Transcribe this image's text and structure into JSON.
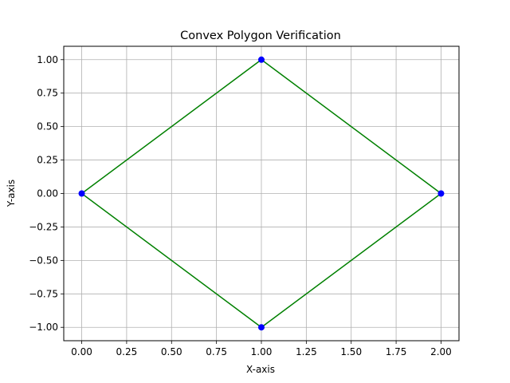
{
  "chart_data": {
    "type": "scatter",
    "title": "Convex Polygon Verification",
    "xlabel": "X-axis",
    "ylabel": "Y-axis",
    "xlim": [
      -0.1,
      2.1
    ],
    "ylim": [
      -1.1,
      1.1
    ],
    "x_ticks": [
      0.0,
      0.25,
      0.5,
      0.75,
      1.0,
      1.25,
      1.5,
      1.75,
      2.0
    ],
    "x_tick_labels": [
      "0.00",
      "0.25",
      "0.50",
      "0.75",
      "1.00",
      "1.25",
      "1.50",
      "1.75",
      "2.00"
    ],
    "y_ticks": [
      -1.0,
      -0.75,
      -0.5,
      -0.25,
      0.0,
      0.25,
      0.5,
      0.75,
      1.0
    ],
    "y_tick_labels": [
      "−1.00",
      "−0.75",
      "−0.50",
      "−0.25",
      "0.00",
      "0.25",
      "0.50",
      "0.75",
      "1.00"
    ],
    "grid": true,
    "points": {
      "x": [
        0,
        1,
        2,
        1
      ],
      "y": [
        0,
        1,
        0,
        -1
      ],
      "color": "#0000ff"
    },
    "polygon": {
      "x": [
        0,
        1,
        2,
        1,
        0
      ],
      "y": [
        0,
        1,
        0,
        -1,
        0
      ],
      "color": "#008000"
    },
    "grid_color": "#b0b0b0"
  }
}
